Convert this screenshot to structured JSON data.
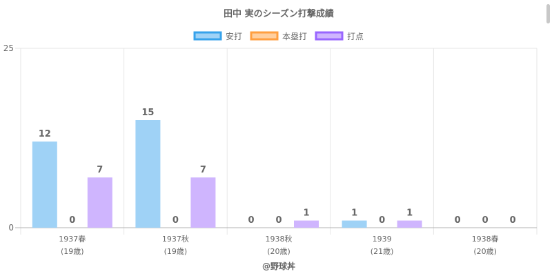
{
  "chart_data": {
    "type": "bar",
    "title": "田中 実のシーズン打撃成績",
    "categories": [
      [
        "1937春",
        "(19歳)"
      ],
      [
        "1937秋",
        "(19歳)"
      ],
      [
        "1938秋",
        "(20歳)"
      ],
      [
        "1939",
        "(21歳)"
      ],
      [
        "1938春",
        "(20歳)"
      ]
    ],
    "series": [
      {
        "name": "安打",
        "values": [
          12,
          15,
          0,
          1,
          0
        ],
        "fill": "#9fd2f6",
        "stroke": "#36a2eb"
      },
      {
        "name": "本塁打",
        "values": [
          0,
          0,
          0,
          0,
          0
        ],
        "fill": "#ffcf9f",
        "stroke": "#ff9f40"
      },
      {
        "name": "打点",
        "values": [
          7,
          7,
          1,
          1,
          0
        ],
        "fill": "#cfb5fe",
        "stroke": "#9966ff"
      }
    ],
    "ylim": [
      0,
      25
    ],
    "yticks": [
      0,
      25
    ],
    "grid": true,
    "legend_position": "top",
    "data_labels": true,
    "source_label": "@野球丼"
  }
}
